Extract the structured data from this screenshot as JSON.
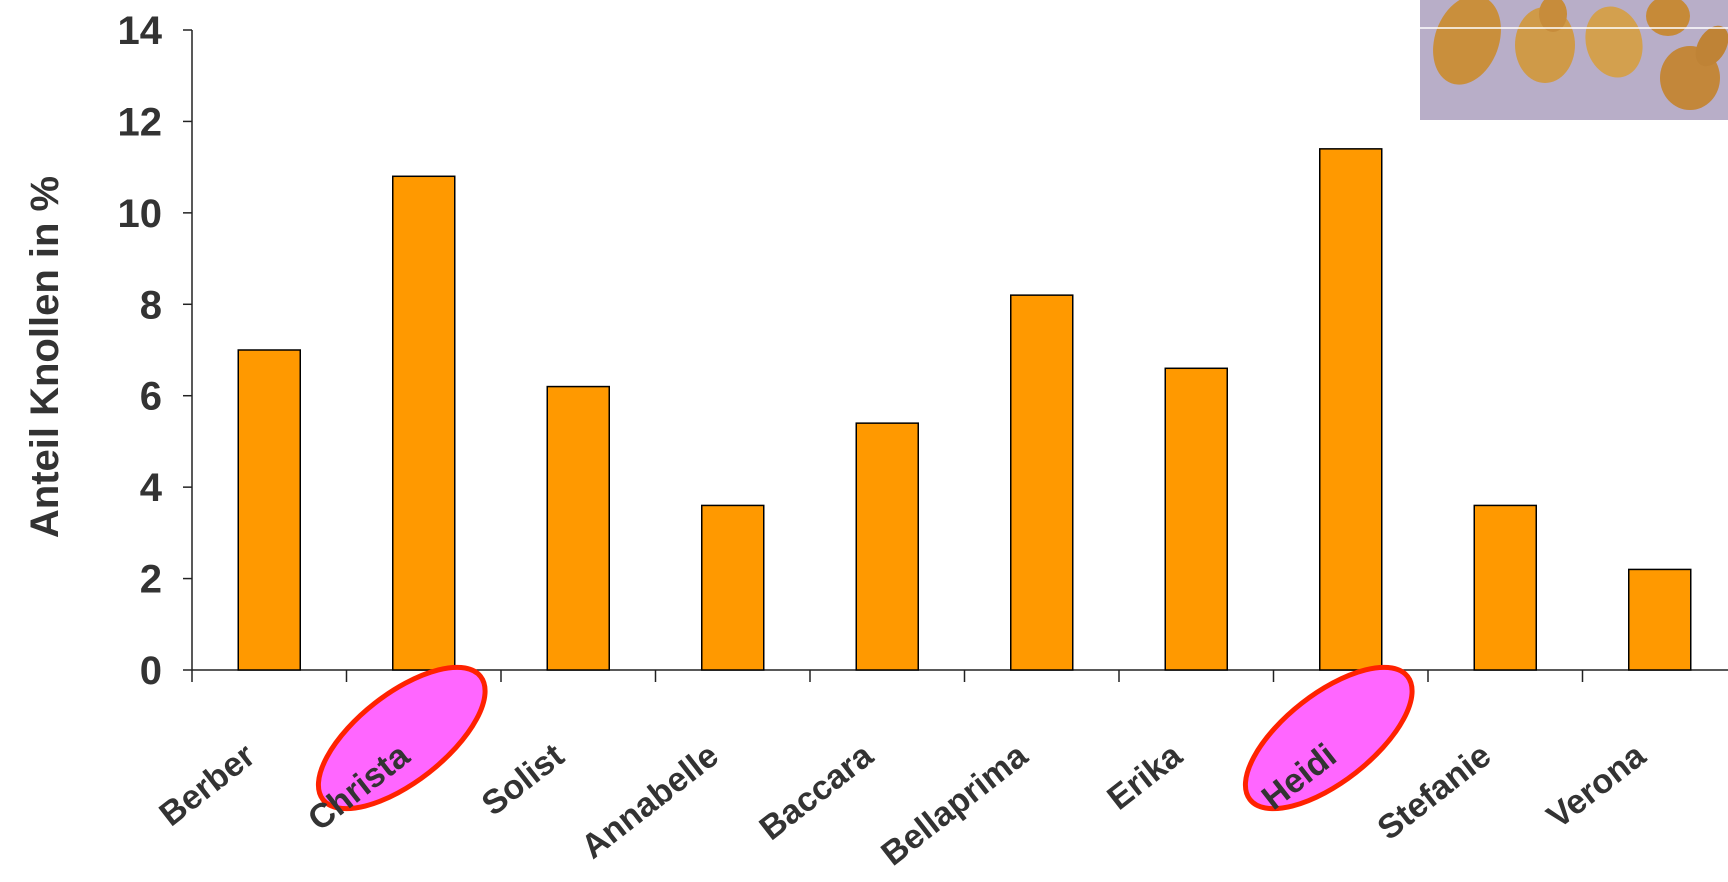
{
  "chart_data": {
    "type": "bar",
    "ylabel": "Anteil Knollen in %",
    "categories": [
      "Berber",
      "Christa",
      "Solist",
      "Annabelle",
      "Baccara",
      "Bellaprima",
      "Erika",
      "Heidi",
      "Stefanie",
      "Verona"
    ],
    "values": [
      7.0,
      10.8,
      6.2,
      3.6,
      5.4,
      8.2,
      6.6,
      11.4,
      3.6,
      2.2
    ],
    "highlighted": [
      "Christa",
      "Heidi"
    ],
    "ylim": [
      0,
      14
    ],
    "yticks": [
      0,
      2,
      4,
      6,
      8,
      10,
      12,
      14
    ],
    "grid": false,
    "colors": {
      "bar": "#FF9900",
      "bar_stroke": "#000000",
      "highlight_fill": "#FF66FF",
      "highlight_stroke": "#FF2200",
      "text": "#333333"
    }
  },
  "photo": {
    "icon": "potato-tubers-photo"
  }
}
